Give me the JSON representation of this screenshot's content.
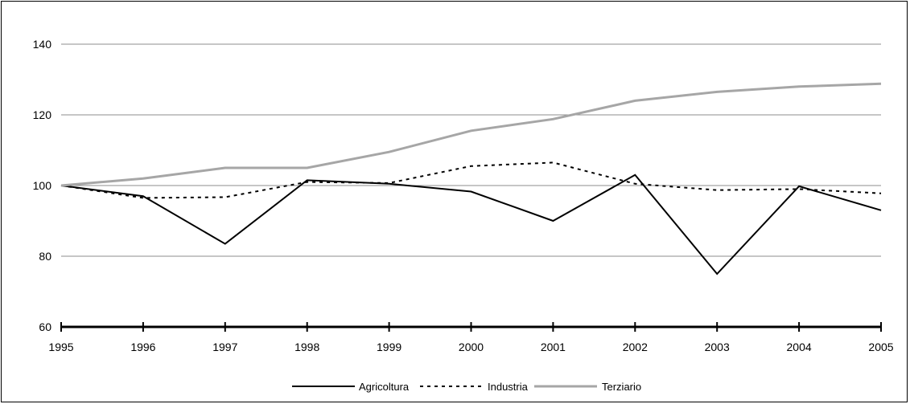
{
  "chart_data": {
    "type": "line",
    "title": "",
    "xlabel": "",
    "ylabel": "",
    "ylim": [
      60,
      140
    ],
    "yticks": [
      60,
      80,
      100,
      120,
      140
    ],
    "grid": true,
    "legend": "bottom",
    "x": [
      "1995",
      "1996",
      "1997",
      "1998",
      "1999",
      "2000",
      "2001",
      "2002",
      "2003",
      "2004",
      "2005"
    ],
    "series": [
      {
        "name": "Agricoltura",
        "color": "#000000",
        "style": "solid",
        "values": [
          100,
          97,
          83.5,
          101.5,
          100.5,
          98.3,
          90,
          103,
          75,
          99.8,
          93
        ]
      },
      {
        "name": "Industria",
        "color": "#000000",
        "style": "dotted",
        "values": [
          100,
          96.5,
          96.7,
          101,
          100.7,
          105.5,
          106.5,
          100.5,
          98.7,
          99,
          97.8
        ]
      },
      {
        "name": "Terziario",
        "color": "#a6a6a6",
        "style": "solid",
        "values": [
          100,
          102,
          105,
          105,
          109.5,
          115.5,
          118.8,
          124,
          126.5,
          128,
          128.8
        ]
      }
    ]
  }
}
